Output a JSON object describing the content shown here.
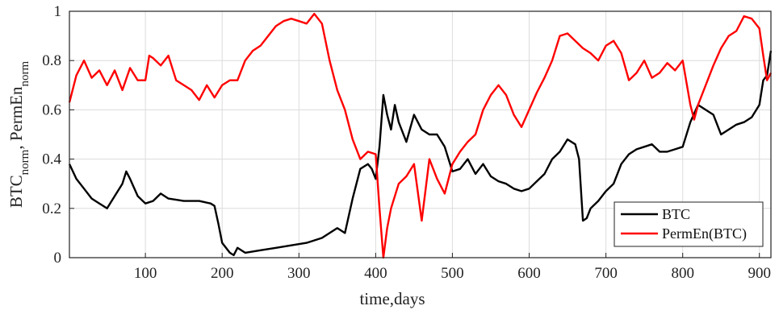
{
  "chart_data": {
    "type": "line",
    "xlabel": "time,days",
    "ylabel": {
      "parts": [
        {
          "text": "BTC"
        },
        {
          "text": "norm",
          "sub": true
        },
        {
          "text": ", PermEn"
        },
        {
          "text": "norm",
          "sub": true
        }
      ]
    },
    "xlim": [
      1,
      915
    ],
    "ylim": [
      0,
      1
    ],
    "xticks": [
      100,
      200,
      300,
      400,
      500,
      600,
      700,
      800,
      900
    ],
    "yticks": [
      0,
      0.2,
      0.4,
      0.6,
      0.8,
      1
    ],
    "ytick_labels": [
      "0",
      "0.2",
      "0.4",
      "0.6",
      "0.8",
      "1"
    ],
    "grid": true,
    "legend_position": "bottom-right",
    "series": [
      {
        "name": "BTC",
        "color": "#000000",
        "x": [
          1,
          10,
          20,
          30,
          40,
          50,
          60,
          70,
          75,
          80,
          90,
          100,
          110,
          120,
          130,
          150,
          170,
          185,
          190,
          195,
          200,
          210,
          215,
          220,
          230,
          250,
          270,
          290,
          310,
          330,
          350,
          360,
          370,
          380,
          390,
          395,
          400,
          405,
          410,
          415,
          420,
          425,
          430,
          440,
          450,
          460,
          470,
          480,
          490,
          500,
          510,
          520,
          530,
          540,
          550,
          560,
          570,
          580,
          590,
          600,
          610,
          620,
          630,
          640,
          650,
          660,
          665,
          670,
          675,
          680,
          690,
          700,
          710,
          720,
          730,
          740,
          750,
          760,
          770,
          780,
          790,
          800,
          810,
          820,
          830,
          840,
          850,
          860,
          870,
          880,
          890,
          900,
          905,
          910,
          915
        ],
        "y": [
          0.38,
          0.32,
          0.28,
          0.24,
          0.22,
          0.2,
          0.25,
          0.3,
          0.35,
          0.32,
          0.25,
          0.22,
          0.23,
          0.26,
          0.24,
          0.23,
          0.23,
          0.22,
          0.21,
          0.14,
          0.06,
          0.02,
          0.01,
          0.04,
          0.02,
          0.03,
          0.04,
          0.05,
          0.06,
          0.08,
          0.12,
          0.1,
          0.24,
          0.36,
          0.38,
          0.36,
          0.32,
          0.45,
          0.66,
          0.58,
          0.52,
          0.62,
          0.55,
          0.47,
          0.58,
          0.52,
          0.5,
          0.5,
          0.45,
          0.35,
          0.36,
          0.4,
          0.34,
          0.38,
          0.33,
          0.31,
          0.3,
          0.28,
          0.27,
          0.28,
          0.31,
          0.34,
          0.4,
          0.43,
          0.48,
          0.46,
          0.4,
          0.15,
          0.16,
          0.2,
          0.23,
          0.27,
          0.3,
          0.38,
          0.42,
          0.44,
          0.45,
          0.46,
          0.43,
          0.43,
          0.44,
          0.45,
          0.55,
          0.62,
          0.6,
          0.58,
          0.5,
          0.52,
          0.54,
          0.55,
          0.57,
          0.62,
          0.72,
          0.74,
          0.84
        ]
      },
      {
        "name": "PermEn(BTC)",
        "color": "#ff0000",
        "x": [
          1,
          10,
          20,
          30,
          40,
          50,
          60,
          70,
          80,
          90,
          100,
          105,
          110,
          120,
          130,
          140,
          150,
          160,
          170,
          180,
          190,
          200,
          210,
          220,
          230,
          240,
          250,
          260,
          270,
          280,
          290,
          300,
          310,
          320,
          330,
          340,
          350,
          360,
          370,
          380,
          390,
          400,
          405,
          410,
          415,
          420,
          430,
          440,
          450,
          460,
          470,
          480,
          490,
          500,
          510,
          520,
          530,
          540,
          550,
          560,
          570,
          580,
          590,
          600,
          610,
          620,
          630,
          640,
          650,
          660,
          670,
          680,
          690,
          700,
          710,
          720,
          730,
          740,
          750,
          760,
          770,
          780,
          790,
          800,
          810,
          815,
          820,
          830,
          840,
          850,
          860,
          870,
          880,
          890,
          900,
          905,
          910,
          915
        ],
        "y": [
          0.63,
          0.74,
          0.8,
          0.73,
          0.76,
          0.7,
          0.76,
          0.68,
          0.77,
          0.72,
          0.72,
          0.82,
          0.81,
          0.78,
          0.82,
          0.72,
          0.7,
          0.68,
          0.64,
          0.7,
          0.65,
          0.7,
          0.72,
          0.72,
          0.8,
          0.84,
          0.86,
          0.9,
          0.94,
          0.96,
          0.97,
          0.96,
          0.95,
          0.99,
          0.95,
          0.8,
          0.68,
          0.6,
          0.48,
          0.4,
          0.43,
          0.42,
          0.2,
          0.0,
          0.12,
          0.2,
          0.3,
          0.33,
          0.38,
          0.15,
          0.4,
          0.32,
          0.26,
          0.38,
          0.43,
          0.47,
          0.5,
          0.6,
          0.66,
          0.7,
          0.66,
          0.58,
          0.53,
          0.6,
          0.67,
          0.73,
          0.8,
          0.9,
          0.91,
          0.88,
          0.85,
          0.83,
          0.8,
          0.86,
          0.88,
          0.83,
          0.72,
          0.75,
          0.8,
          0.73,
          0.75,
          0.79,
          0.76,
          0.8,
          0.62,
          0.56,
          0.62,
          0.7,
          0.78,
          0.85,
          0.9,
          0.92,
          0.98,
          0.97,
          0.93,
          0.82,
          0.72,
          0.75
        ]
      }
    ]
  }
}
